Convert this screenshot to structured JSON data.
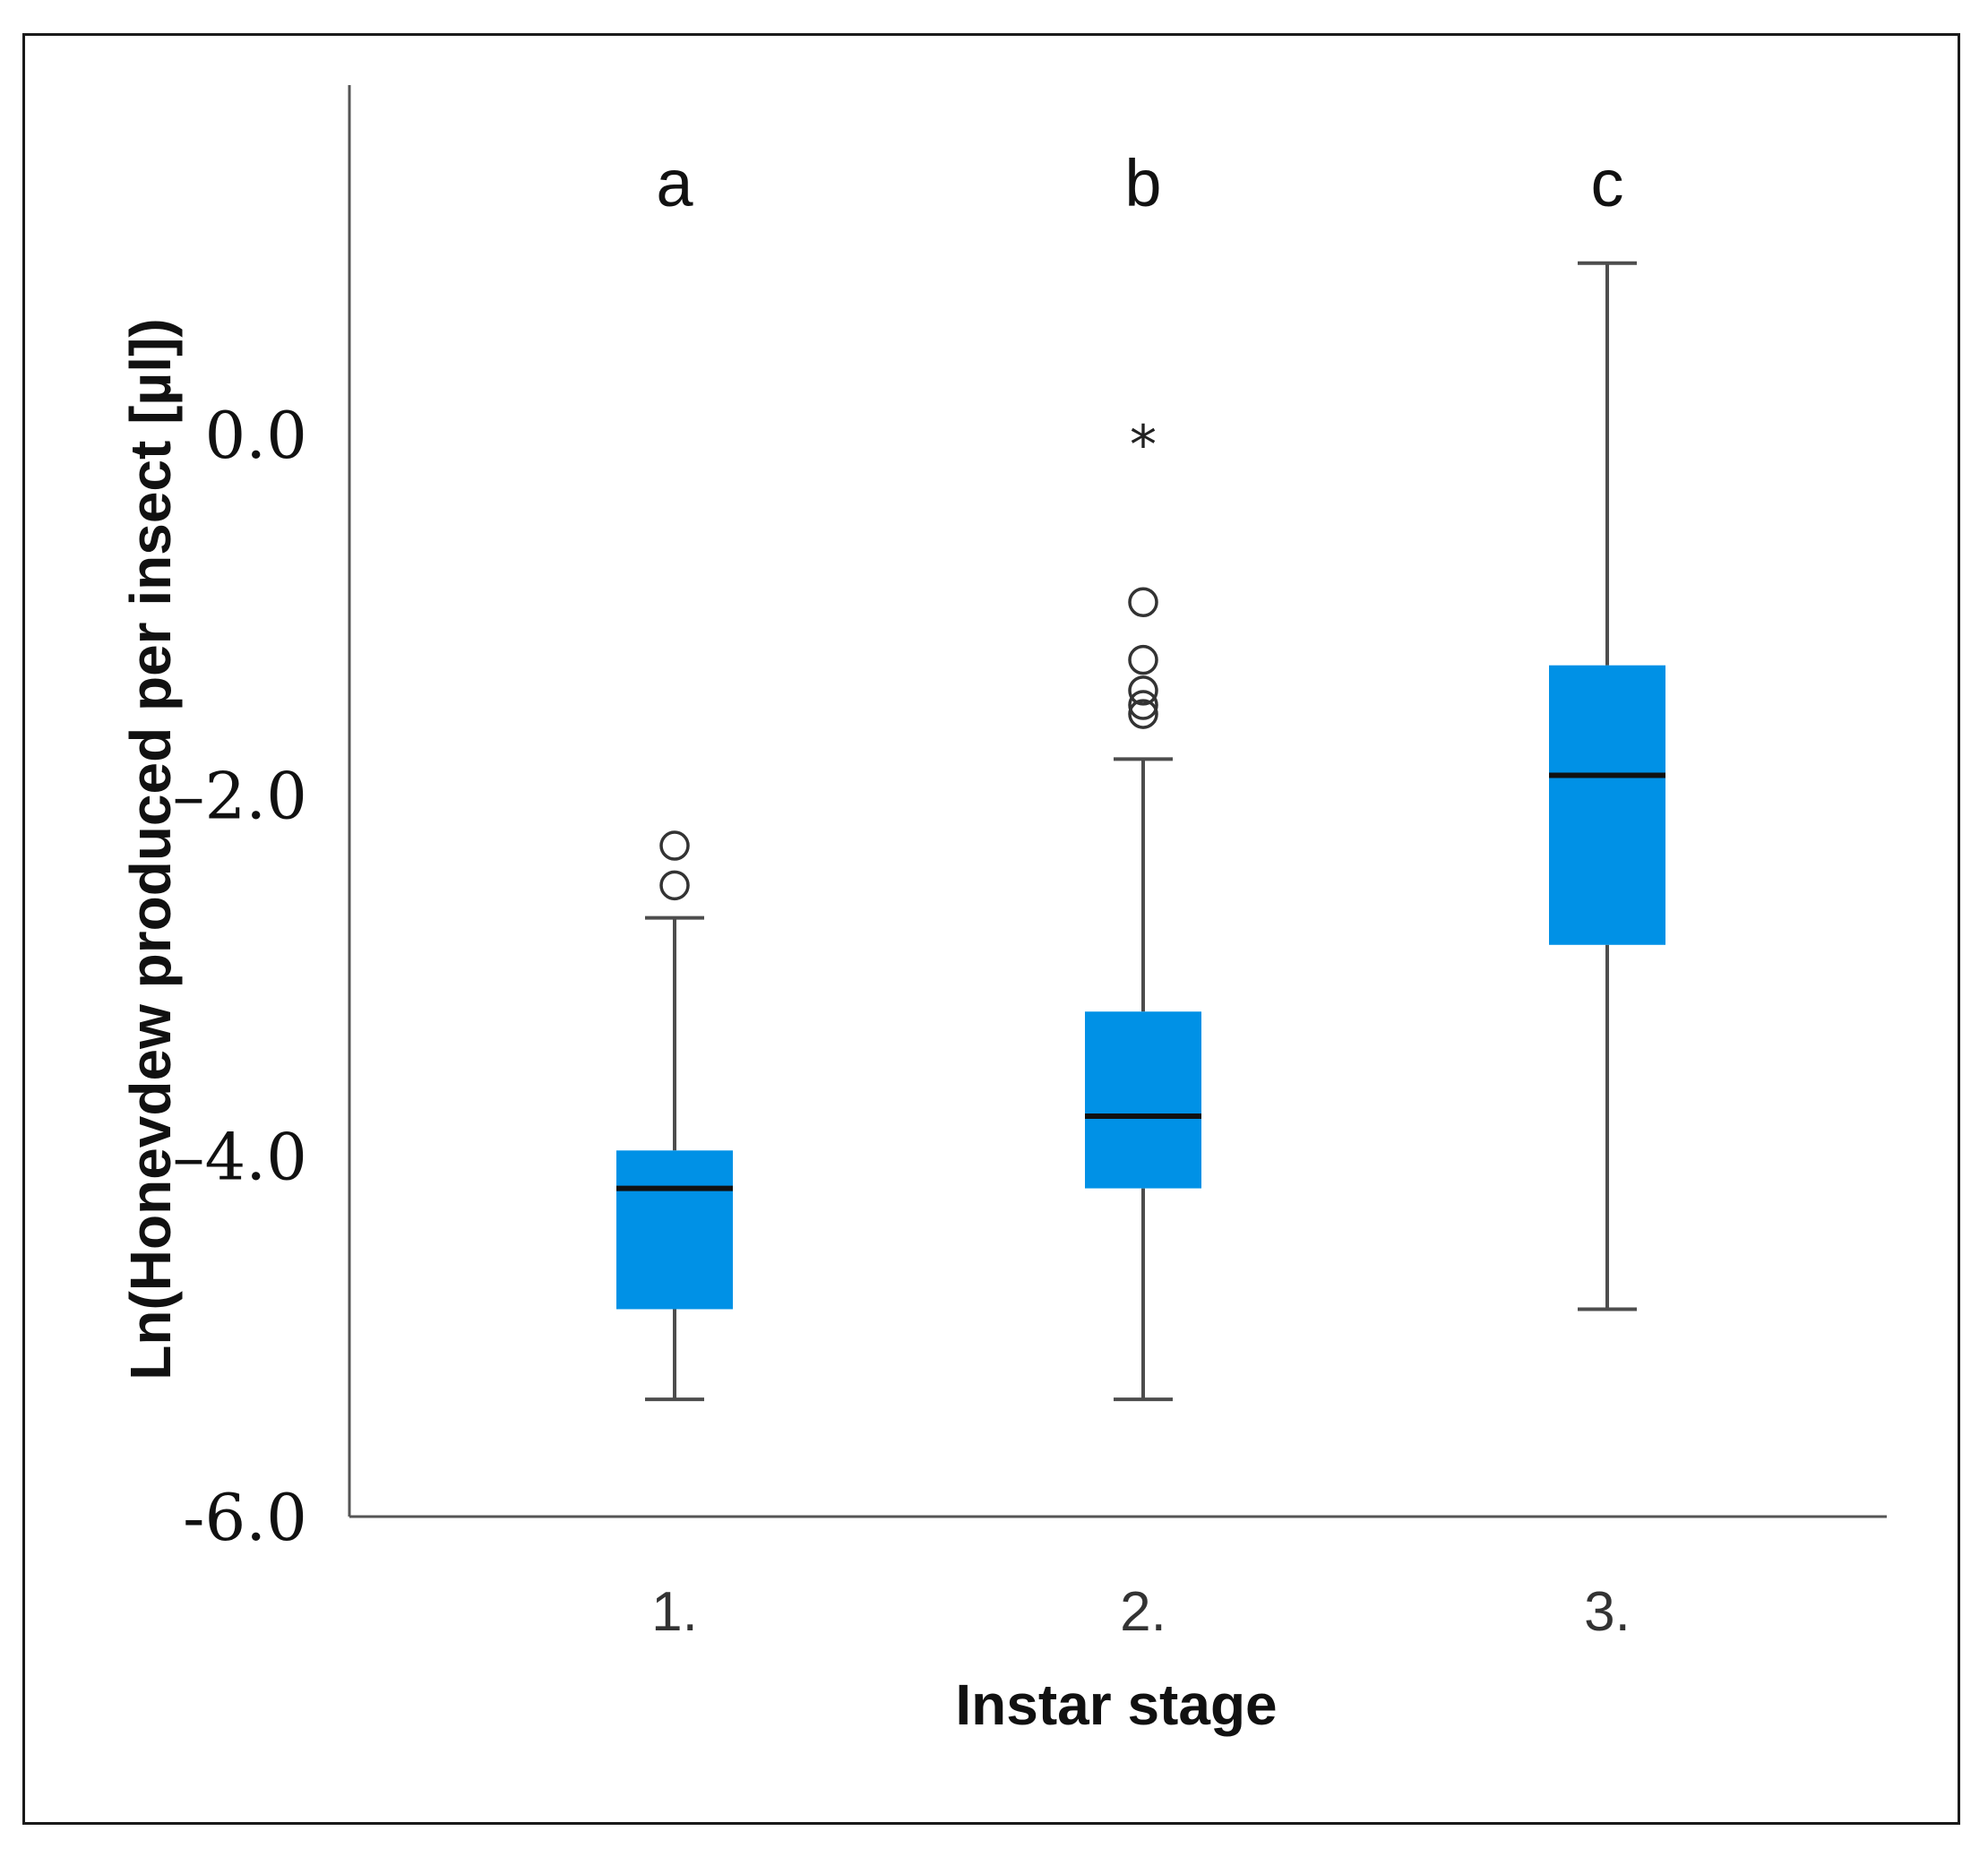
{
  "chart_data": {
    "type": "boxplot",
    "title": "",
    "xlabel": "Instar stage",
    "ylabel": "Ln(Honevdew produced per insect [µl])",
    "ylim": [
      -6.0,
      1.8
    ],
    "yticks": [
      0.0,
      -2.0,
      -4.0,
      -6.0
    ],
    "ytick_labels": [
      "0.0",
      "–2.0",
      "–4.0",
      "-6.0"
    ],
    "colors": {
      "box": "#0091e6",
      "median": "#111111",
      "whisker": "#4d4d4d"
    },
    "groups": [
      {
        "category": "1.",
        "letter": "a",
        "whisker_low": -5.35,
        "q1": -4.85,
        "median": -4.18,
        "q3": -3.97,
        "whisker_high": -2.68,
        "outliers": [
          -2.28,
          -2.5
        ],
        "extremes": []
      },
      {
        "category": "2.",
        "letter": "b",
        "whisker_low": -5.35,
        "q1": -4.18,
        "median": -3.78,
        "q3": -3.2,
        "whisker_high": -1.8,
        "outliers": [
          -1.5,
          -1.55,
          -1.42,
          -1.25,
          -0.93
        ],
        "extremes": [
          -0.02
        ]
      },
      {
        "category": "3.",
        "letter": "c",
        "whisker_low": -4.85,
        "q1": -2.83,
        "median": -1.89,
        "q3": -1.28,
        "whisker_high": 0.95,
        "outliers": [],
        "extremes": []
      }
    ]
  }
}
